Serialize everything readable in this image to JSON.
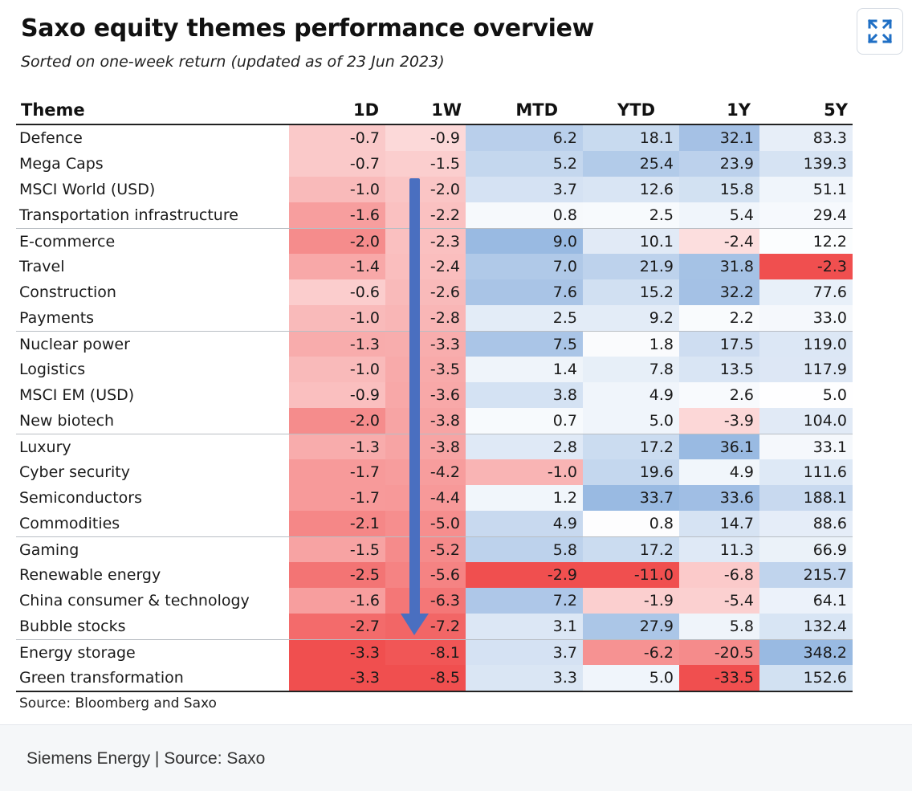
{
  "figure": {
    "title": "Saxo equity themes performance overview",
    "subtitle": "Sorted on one-week return (updated as of 23 Jun 2023)",
    "source": "Source: Bloomberg and Saxo",
    "expand_icon": "expand-icon"
  },
  "caption": "Siemens Energy | Source: Saxo",
  "colors": {
    "positive": "#5b8fd0",
    "negative": "#f04b4b",
    "arrow": "#4a6fc0"
  },
  "chart_data": {
    "type": "table",
    "columns": [
      "Theme",
      "1D",
      "1W",
      "MTD",
      "YTD",
      "1Y",
      "5Y"
    ],
    "rows": [
      {
        "theme": "Defence",
        "values": [
          "-0.7",
          "-0.9",
          "6.2",
          "18.1",
          "32.1",
          "83.3"
        ]
      },
      {
        "theme": "Mega Caps",
        "values": [
          "-0.7",
          "-1.5",
          "5.2",
          "25.4",
          "23.9",
          "139.3"
        ]
      },
      {
        "theme": "MSCI World (USD)",
        "values": [
          "-1.0",
          "-2.0",
          "3.7",
          "12.6",
          "15.8",
          "51.1"
        ]
      },
      {
        "theme": "Transportation infrastructure",
        "values": [
          "-1.6",
          "-2.2",
          "0.8",
          "2.5",
          "5.4",
          "29.4"
        ]
      },
      {
        "theme": "E-commerce",
        "values": [
          "-2.0",
          "-2.3",
          "9.0",
          "10.1",
          "-2.4",
          "12.2"
        ]
      },
      {
        "theme": "Travel",
        "values": [
          "-1.4",
          "-2.4",
          "7.0",
          "21.9",
          "31.8",
          "-2.3"
        ]
      },
      {
        "theme": "Construction",
        "values": [
          "-0.6",
          "-2.6",
          "7.6",
          "15.2",
          "32.2",
          "77.6"
        ]
      },
      {
        "theme": "Payments",
        "values": [
          "-1.0",
          "-2.8",
          "2.5",
          "9.2",
          "2.2",
          "33.0"
        ]
      },
      {
        "theme": "Nuclear power",
        "values": [
          "-1.3",
          "-3.3",
          "7.5",
          "1.8",
          "17.5",
          "119.0"
        ]
      },
      {
        "theme": "Logistics",
        "values": [
          "-1.0",
          "-3.5",
          "1.4",
          "7.8",
          "13.5",
          "117.9"
        ]
      },
      {
        "theme": "MSCI EM (USD)",
        "values": [
          "-0.9",
          "-3.6",
          "3.8",
          "4.9",
          "2.6",
          "5.0"
        ]
      },
      {
        "theme": "New biotech",
        "values": [
          "-2.0",
          "-3.8",
          "0.7",
          "5.0",
          "-3.9",
          "104.0"
        ]
      },
      {
        "theme": "Luxury",
        "values": [
          "-1.3",
          "-3.8",
          "2.8",
          "17.2",
          "36.1",
          "33.1"
        ]
      },
      {
        "theme": "Cyber security",
        "values": [
          "-1.7",
          "-4.2",
          "-1.0",
          "19.6",
          "4.9",
          "111.6"
        ]
      },
      {
        "theme": "Semiconductors",
        "values": [
          "-1.7",
          "-4.4",
          "1.2",
          "33.7",
          "33.6",
          "188.1"
        ]
      },
      {
        "theme": "Commodities",
        "values": [
          "-2.1",
          "-5.0",
          "4.9",
          "0.8",
          "14.7",
          "88.6"
        ]
      },
      {
        "theme": "Gaming",
        "values": [
          "-1.5",
          "-5.2",
          "5.8",
          "17.2",
          "11.3",
          "66.9"
        ]
      },
      {
        "theme": "Renewable energy",
        "values": [
          "-2.5",
          "-5.6",
          "-2.9",
          "-11.0",
          "-6.8",
          "215.7"
        ]
      },
      {
        "theme": "China consumer & technology",
        "values": [
          "-1.6",
          "-6.3",
          "7.2",
          "-1.9",
          "-5.4",
          "64.1"
        ]
      },
      {
        "theme": "Bubble stocks",
        "values": [
          "-2.7",
          "-7.2",
          "3.1",
          "27.9",
          "5.8",
          "132.4"
        ]
      },
      {
        "theme": "Energy storage",
        "values": [
          "-3.3",
          "-8.1",
          "3.7",
          "-6.2",
          "-20.5",
          "348.2"
        ]
      },
      {
        "theme": "Green transformation",
        "values": [
          "-3.3",
          "-8.5",
          "3.3",
          "5.0",
          "-33.5",
          "152.6"
        ]
      }
    ]
  }
}
